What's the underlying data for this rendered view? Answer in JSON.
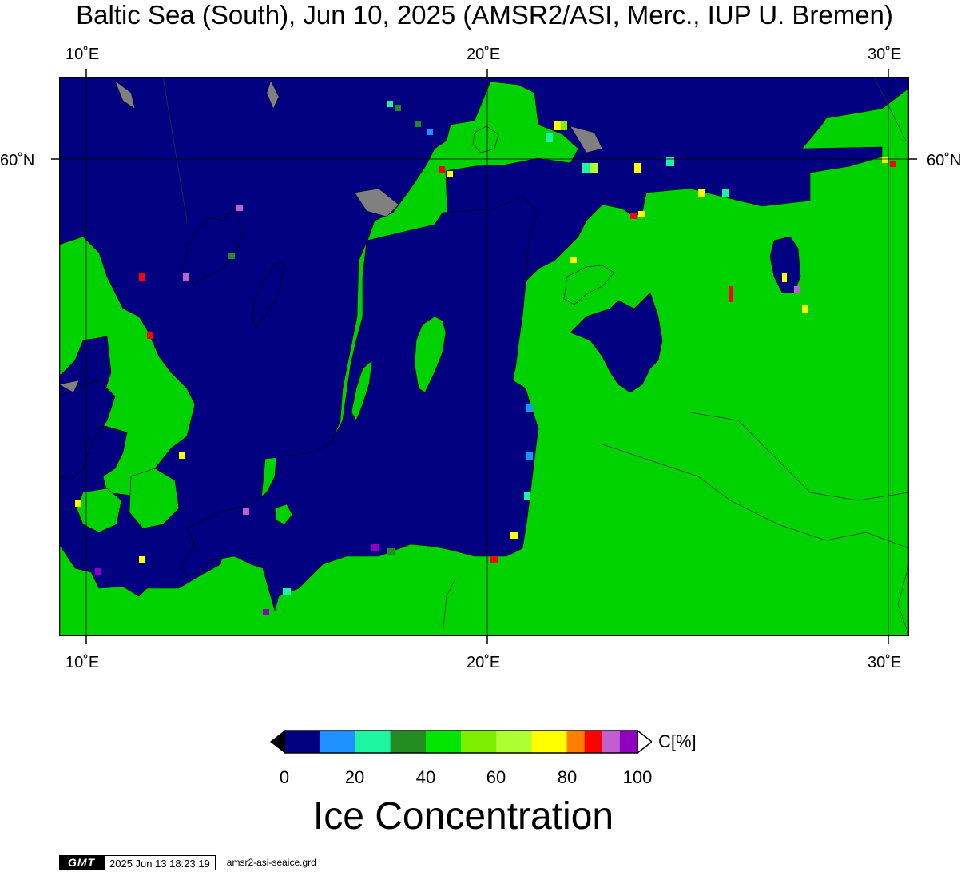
{
  "title": "Baltic Sea (South), Jun 10, 2025 (AMSR2/ASI, Merc., IUP U. Bremen)",
  "axes": {
    "top_lon_labels": [
      "10˚E",
      "20˚E",
      "30˚E"
    ],
    "bottom_lon_labels": [
      "10˚E",
      "20˚E",
      "30˚E"
    ],
    "left_lat_label": "60˚N",
    "right_lat_label": "60˚N"
  },
  "colors": {
    "water_0": "#000080",
    "land": "#00d200",
    "gray_land": "#808080",
    "scale": [
      "#000080",
      "#1e90ff",
      "#1ef5a0",
      "#228b22",
      "#00e600",
      "#7cf000",
      "#adff2f",
      "#ffff00",
      "#ff7f00",
      "#ff0000",
      "#c060d0",
      "#9000c0"
    ]
  },
  "colorbar": {
    "unit": "C[%]",
    "ticks": [
      "0",
      "20",
      "40",
      "60",
      "80",
      "100"
    ],
    "title": "Ice Concentration"
  },
  "footer": {
    "logo": "GMT",
    "timestamp": "2025 Jun 13 18:23:19",
    "filename": "amsr2-asi-seaice.grd"
  }
}
